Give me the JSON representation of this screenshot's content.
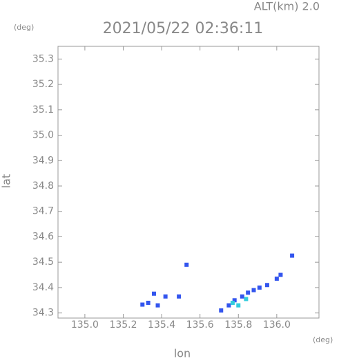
{
  "chart_data": {
    "type": "scatter",
    "title": "2021/05/22 02:36:11",
    "subtitle": "ALT(km) 2.0",
    "x_label": "lon",
    "y_label": "lat",
    "x_unit": "(deg)",
    "y_unit": "(deg)",
    "xlim": [
      134.86,
      136.22
    ],
    "ylim": [
      34.28,
      35.35
    ],
    "xticks": [
      {
        "value": 135,
        "label": "135.0"
      },
      135.2,
      135.4,
      135.6,
      135.8,
      {
        "value": 136,
        "label": "136.0"
      }
    ],
    "yticks": [
      34.3,
      34.4,
      34.5,
      34.6,
      34.7,
      34.8,
      34.9,
      {
        "value": 35,
        "label": "35.0"
      },
      35.1,
      35.2,
      35.3
    ],
    "series": [
      {
        "color": "#3355ee",
        "x": [
          135.3,
          135.33,
          135.36,
          135.38,
          135.42,
          135.49,
          135.53,
          136.08,
          135.71,
          135.75,
          135.78,
          135.82,
          135.85,
          135.88,
          135.91,
          135.95,
          136.0,
          136.02
        ],
        "values": [
          34.333,
          34.34,
          34.376,
          34.33,
          34.365,
          34.365,
          34.49,
          34.526,
          34.31,
          34.33,
          34.35,
          34.365,
          34.38,
          34.39,
          34.4,
          34.41,
          34.435,
          34.45
        ]
      },
      {
        "color": "#33ccdd",
        "x": [
          135.8,
          135.77,
          135.84
        ],
        "values": [
          34.33,
          34.34,
          34.355
        ]
      }
    ]
  }
}
